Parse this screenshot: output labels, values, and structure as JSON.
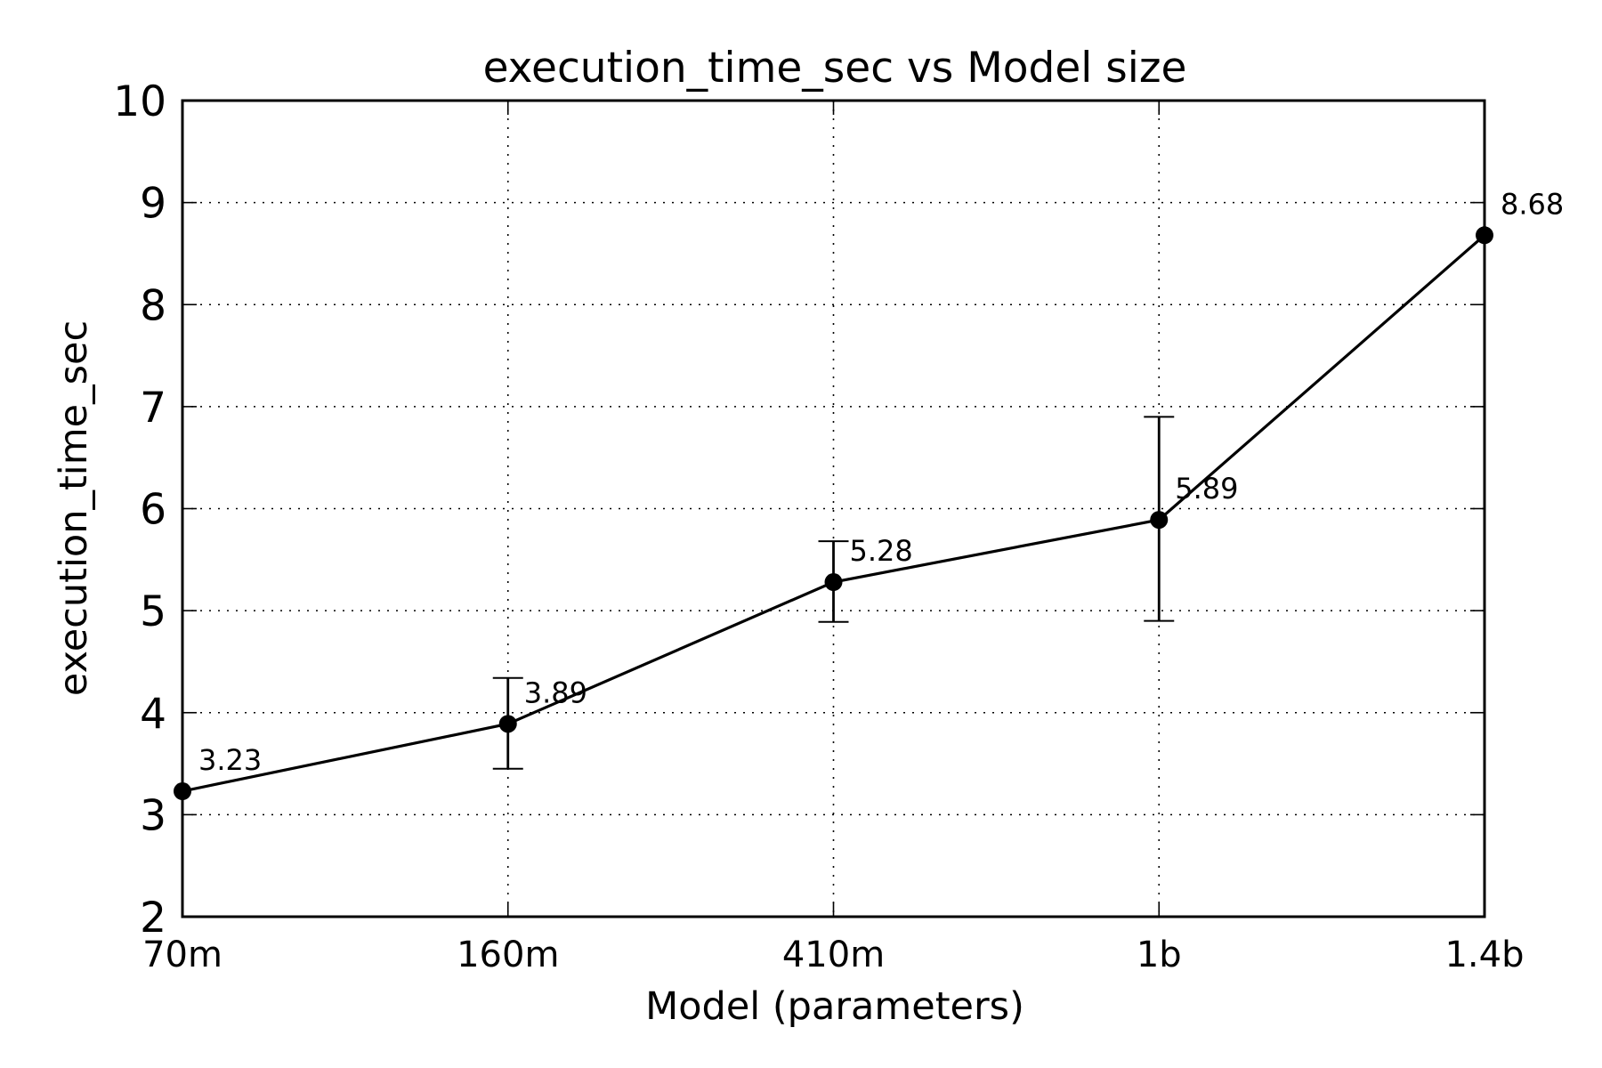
{
  "chart_data": {
    "type": "line",
    "title": "execution_time_sec vs Model size",
    "xlabel": "Model (parameters)",
    "ylabel": "execution_time_sec",
    "categories": [
      "70m",
      "160m",
      "410m",
      "1b",
      "1.4b"
    ],
    "values": [
      3.23,
      3.89,
      5.28,
      5.89,
      8.68
    ],
    "data_labels": [
      "3.23",
      "3.89",
      "5.28",
      "5.89",
      "8.68"
    ],
    "error_bars": [
      null,
      [
        3.45,
        4.34
      ],
      [
        4.89,
        5.68
      ],
      [
        4.9,
        6.9
      ],
      null
    ],
    "ylim": [
      2,
      10
    ],
    "yticks": [
      2,
      3,
      4,
      5,
      6,
      7,
      8,
      9,
      10
    ],
    "ytick_labels": [
      "2",
      "3",
      "4",
      "5",
      "6",
      "7",
      "8",
      "9",
      "10"
    ],
    "grid": true,
    "legend": "none",
    "colors": {
      "line": "#000000",
      "marker": "#000000"
    }
  }
}
